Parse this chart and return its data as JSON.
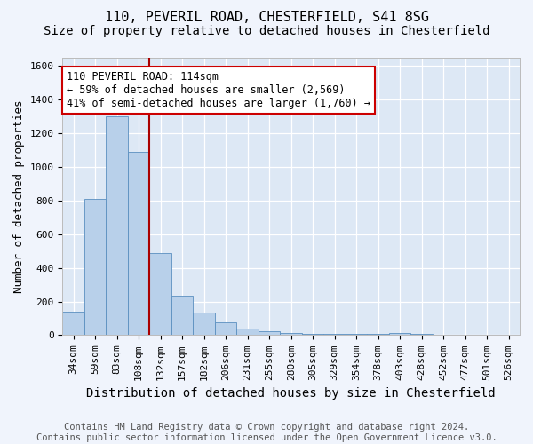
{
  "title1": "110, PEVERIL ROAD, CHESTERFIELD, S41 8SG",
  "title2": "Size of property relative to detached houses in Chesterfield",
  "xlabel": "Distribution of detached houses by size in Chesterfield",
  "ylabel": "Number of detached properties",
  "categories": [
    "34sqm",
    "59sqm",
    "83sqm",
    "108sqm",
    "132sqm",
    "157sqm",
    "182sqm",
    "206sqm",
    "231sqm",
    "255sqm",
    "280sqm",
    "305sqm",
    "329sqm",
    "354sqm",
    "378sqm",
    "403sqm",
    "428sqm",
    "452sqm",
    "477sqm",
    "501sqm",
    "526sqm"
  ],
  "values": [
    140,
    810,
    1300,
    1090,
    490,
    235,
    135,
    75,
    40,
    25,
    15,
    10,
    10,
    10,
    10,
    15,
    10,
    0,
    0,
    0,
    0
  ],
  "bar_color": "#b8d0ea",
  "bar_edge_color": "#5a8fc0",
  "bg_color": "#dde8f5",
  "grid_color": "#ffffff",
  "red_line_x": 3.5,
  "red_line_color": "#aa0000",
  "annotation_line1": "110 PEVERIL ROAD: 114sqm",
  "annotation_line2": "← 59% of detached houses are smaller (2,569)",
  "annotation_line3": "41% of semi-detached houses are larger (1,760) →",
  "annotation_box_color": "#ffffff",
  "annotation_box_edge": "#cc0000",
  "ylim": [
    0,
    1650
  ],
  "yticks": [
    0,
    200,
    400,
    600,
    800,
    1000,
    1200,
    1400,
    1600
  ],
  "footer": "Contains HM Land Registry data © Crown copyright and database right 2024.\nContains public sector information licensed under the Open Government Licence v3.0.",
  "title_fontsize": 11,
  "subtitle_fontsize": 10,
  "axis_label_fontsize": 9,
  "tick_fontsize": 8,
  "annotation_fontsize": 8.5,
  "footer_fontsize": 7.5
}
